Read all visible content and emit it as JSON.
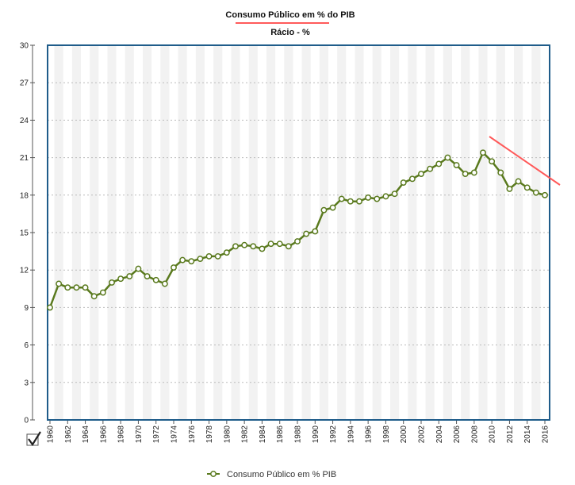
{
  "colors": {
    "series": "#5a7a1e",
    "marker_fill": "#ffffff",
    "plot_border": "#1f5c8a",
    "grid": "#bbbbbb",
    "band": "#f2f2f2",
    "annotation": "#ff5a5a"
  },
  "legend": {
    "label": "Consumo Público em % PIB",
    "icon": "line-with-circle-marker-icon",
    "position": "bottom-center"
  },
  "toggle": {
    "icon": "checkmark-icon",
    "checked": true
  },
  "chart_data": {
    "type": "line",
    "title": "Consumo Público em % do PIB",
    "subtitle": "Rácio - %",
    "xlabel": "",
    "ylabel": "",
    "ylim": [
      0,
      30
    ],
    "yticks": [
      0,
      3,
      6,
      9,
      12,
      15,
      18,
      21,
      24,
      27,
      30
    ],
    "xlim": [
      1960,
      2016
    ],
    "xticks": [
      1960,
      1962,
      1964,
      1966,
      1968,
      1970,
      1972,
      1974,
      1976,
      1978,
      1980,
      1982,
      1984,
      1986,
      1988,
      1990,
      1992,
      1994,
      1996,
      1998,
      2000,
      2002,
      2004,
      2006,
      2008,
      2010,
      2012,
      2014,
      2016
    ],
    "grid": true,
    "x": [
      1960,
      1961,
      1962,
      1963,
      1964,
      1965,
      1966,
      1967,
      1968,
      1969,
      1970,
      1971,
      1972,
      1973,
      1974,
      1975,
      1976,
      1977,
      1978,
      1979,
      1980,
      1981,
      1982,
      1983,
      1984,
      1985,
      1986,
      1987,
      1988,
      1989,
      1990,
      1991,
      1992,
      1993,
      1994,
      1995,
      1996,
      1997,
      1998,
      1999,
      2000,
      2001,
      2002,
      2003,
      2004,
      2005,
      2006,
      2007,
      2008,
      2009,
      2010,
      2011,
      2012,
      2013,
      2014,
      2015,
      2016
    ],
    "series": [
      {
        "name": "Consumo Público em % PIB",
        "values": [
          9.0,
          10.9,
          10.6,
          10.6,
          10.6,
          9.9,
          10.2,
          11.0,
          11.3,
          11.5,
          12.1,
          11.5,
          11.2,
          10.9,
          12.2,
          12.8,
          12.7,
          12.9,
          13.1,
          13.1,
          13.4,
          13.9,
          14.0,
          13.9,
          13.7,
          14.1,
          14.1,
          13.9,
          14.3,
          14.9,
          15.1,
          16.8,
          17.0,
          17.7,
          17.5,
          17.5,
          17.8,
          17.7,
          17.9,
          18.1,
          19.0,
          19.3,
          19.7,
          20.1,
          20.5,
          21.0,
          20.4,
          19.7,
          19.8,
          21.4,
          20.7,
          19.8,
          18.5,
          19.1,
          18.6,
          18.2,
          18.0
        ]
      }
    ]
  }
}
